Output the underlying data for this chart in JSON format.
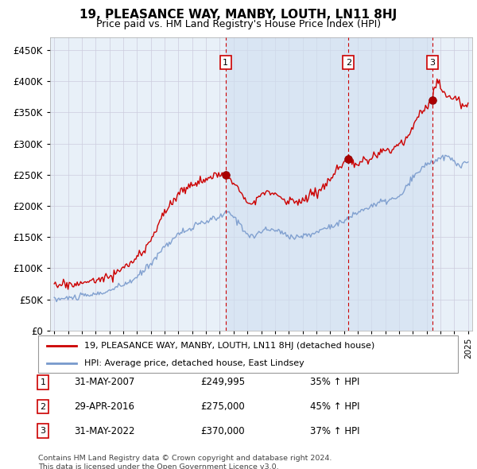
{
  "title": "19, PLEASANCE WAY, MANBY, LOUTH, LN11 8HJ",
  "subtitle": "Price paid vs. HM Land Registry's House Price Index (HPI)",
  "footer": "Contains HM Land Registry data © Crown copyright and database right 2024.\nThis data is licensed under the Open Government Licence v3.0.",
  "legend_red": "19, PLEASANCE WAY, MANBY, LOUTH, LN11 8HJ (detached house)",
  "legend_blue": "HPI: Average price, detached house, East Lindsey",
  "transactions": [
    {
      "num": 1,
      "date": "31-MAY-2007",
      "price": "£249,995",
      "change": "35% ↑ HPI",
      "year": 2007.42,
      "price_val": 249995
    },
    {
      "num": 2,
      "date": "29-APR-2016",
      "price": "£275,000",
      "change": "45% ↑ HPI",
      "year": 2016.33,
      "price_val": 275000
    },
    {
      "num": 3,
      "date": "31-MAY-2022",
      "price": "£370,000",
      "change": "37% ↑ HPI",
      "year": 2022.42,
      "price_val": 370000
    }
  ],
  "ylim": [
    0,
    470000
  ],
  "yticks": [
    0,
    50000,
    100000,
    150000,
    200000,
    250000,
    300000,
    350000,
    400000,
    450000
  ],
  "plot_bg": "#e8f0f8",
  "red_color": "#cc0000",
  "blue_color": "#7799cc",
  "grid_color": "#ccccdd",
  "shade_color": "#d0dff0"
}
